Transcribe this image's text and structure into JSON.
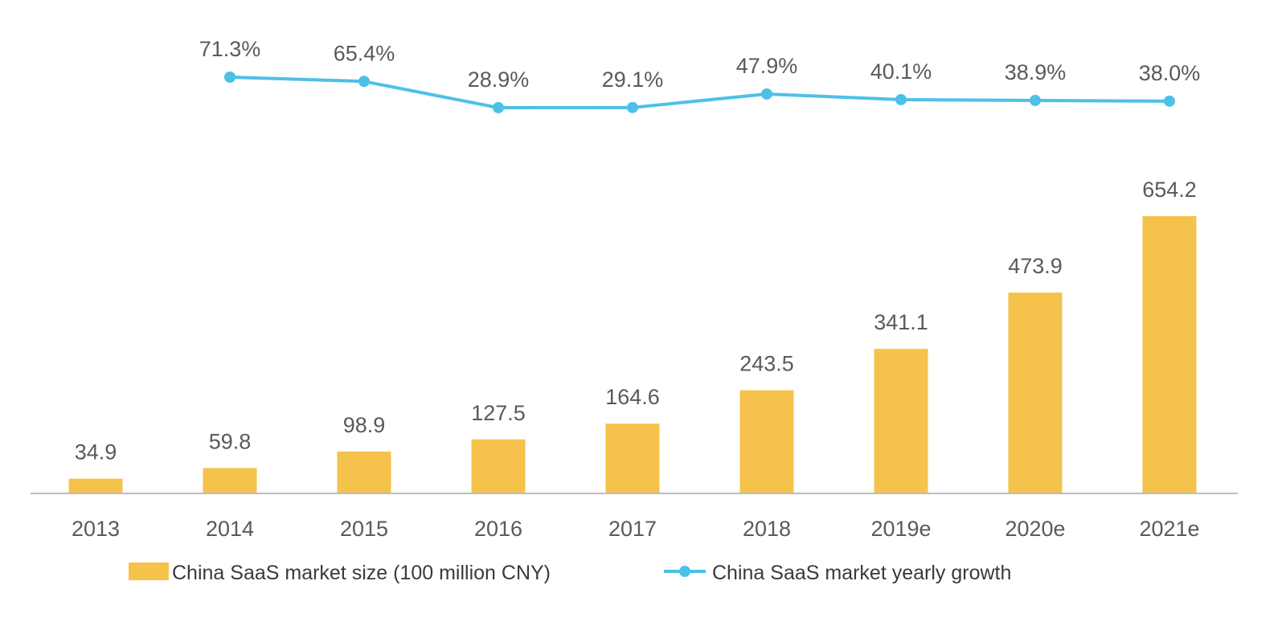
{
  "chart_data": {
    "type": "bar+line",
    "categories": [
      "2013",
      "2014",
      "2015",
      "2016",
      "2017",
      "2018",
      "2019e",
      "2020e",
      "2021e"
    ],
    "series": [
      {
        "name": "China SaaS market size (100 million CNY)",
        "type": "bar",
        "values": [
          34.9,
          59.8,
          98.9,
          127.5,
          164.6,
          243.5,
          341.1,
          473.9,
          654.2
        ],
        "labels": [
          "34.9",
          "59.8",
          "98.9",
          "127.5",
          "164.6",
          "243.5",
          "341.1",
          "473.9",
          "654.2"
        ],
        "color": "#F5C34B"
      },
      {
        "name": "China SaaS market yearly growth",
        "type": "line",
        "values": [
          null,
          71.3,
          65.4,
          28.9,
          29.1,
          47.9,
          40.1,
          38.9,
          38.0
        ],
        "labels": [
          null,
          "71.3%",
          "65.4%",
          "28.9%",
          "29.1%",
          "47.9%",
          "40.1%",
          "38.9%",
          "38.0%"
        ],
        "color": "#4DC0E8"
      }
    ],
    "title": "",
    "xlabel": "",
    "ylabel": "",
    "ylim": [
      0,
      654.2
    ],
    "growth_range": [
      28.9,
      71.3
    ],
    "grid": false,
    "legend": "bottom-center"
  }
}
